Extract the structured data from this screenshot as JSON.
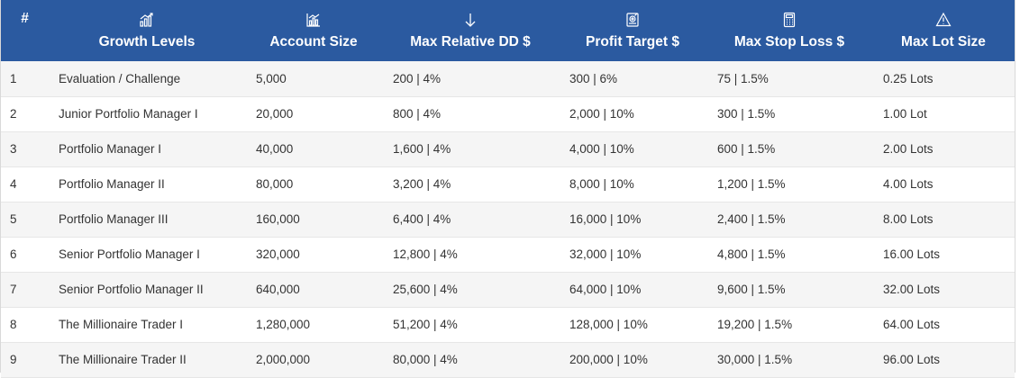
{
  "table": {
    "headers": [
      {
        "label": "#",
        "icon": ""
      },
      {
        "label": "Growth Levels",
        "icon": "growth-chart-icon"
      },
      {
        "label": "Account Size",
        "icon": "bar-chart-icon"
      },
      {
        "label": "Max Relative DD $",
        "icon": "arrow-down-icon"
      },
      {
        "label": "Profit Target $",
        "icon": "target-document-icon"
      },
      {
        "label": "Max Stop Loss $",
        "icon": "calculator-icon"
      },
      {
        "label": "Max Lot Size",
        "icon": "warning-icon"
      }
    ],
    "rows": [
      [
        "1",
        "Evaluation / Challenge",
        "5,000",
        "200 | 4%",
        "300 | 6%",
        "75 | 1.5%",
        "0.25 Lots"
      ],
      [
        "2",
        "Junior Portfolio Manager I",
        "20,000",
        "800 | 4%",
        "2,000 | 10%",
        "300 | 1.5%",
        "1.00 Lot"
      ],
      [
        "3",
        "Portfolio Manager I",
        "40,000",
        "1,600 | 4%",
        "4,000 | 10%",
        "600 | 1.5%",
        "2.00 Lots"
      ],
      [
        "4",
        "Portfolio Manager II",
        "80,000",
        "3,200 | 4%",
        "8,000 | 10%",
        "1,200 | 1.5%",
        "4.00 Lots"
      ],
      [
        "5",
        "Portfolio Manager III",
        "160,000",
        "6,400 | 4%",
        "16,000 | 10%",
        "2,400 | 1.5%",
        "8.00 Lots"
      ],
      [
        "6",
        "Senior Portfolio Manager I",
        "320,000",
        "12,800 | 4%",
        "32,000 | 10%",
        "4,800 | 1.5%",
        "16.00 Lots"
      ],
      [
        "7",
        "Senior Portfolio Manager II",
        "640,000",
        "25,600 | 4%",
        "64,000 | 10%",
        "9,600 | 1.5%",
        "32.00 Lots"
      ],
      [
        "8",
        "The Millionaire Trader I",
        "1,280,000",
        "51,200 | 4%",
        "128,000 | 10%",
        "19,200 | 1.5%",
        "64.00 Lots"
      ],
      [
        "9",
        "The Millionaire Trader II",
        "2,000,000",
        "80,000 | 4%",
        "200,000 | 10%",
        "30,000 | 1.5%",
        "96.00 Lots"
      ]
    ]
  },
  "colors": {
    "header_bg": "#2b5aa0",
    "header_text": "#ffffff",
    "row_alt_bg": "#f5f5f5",
    "body_text": "#333333"
  }
}
